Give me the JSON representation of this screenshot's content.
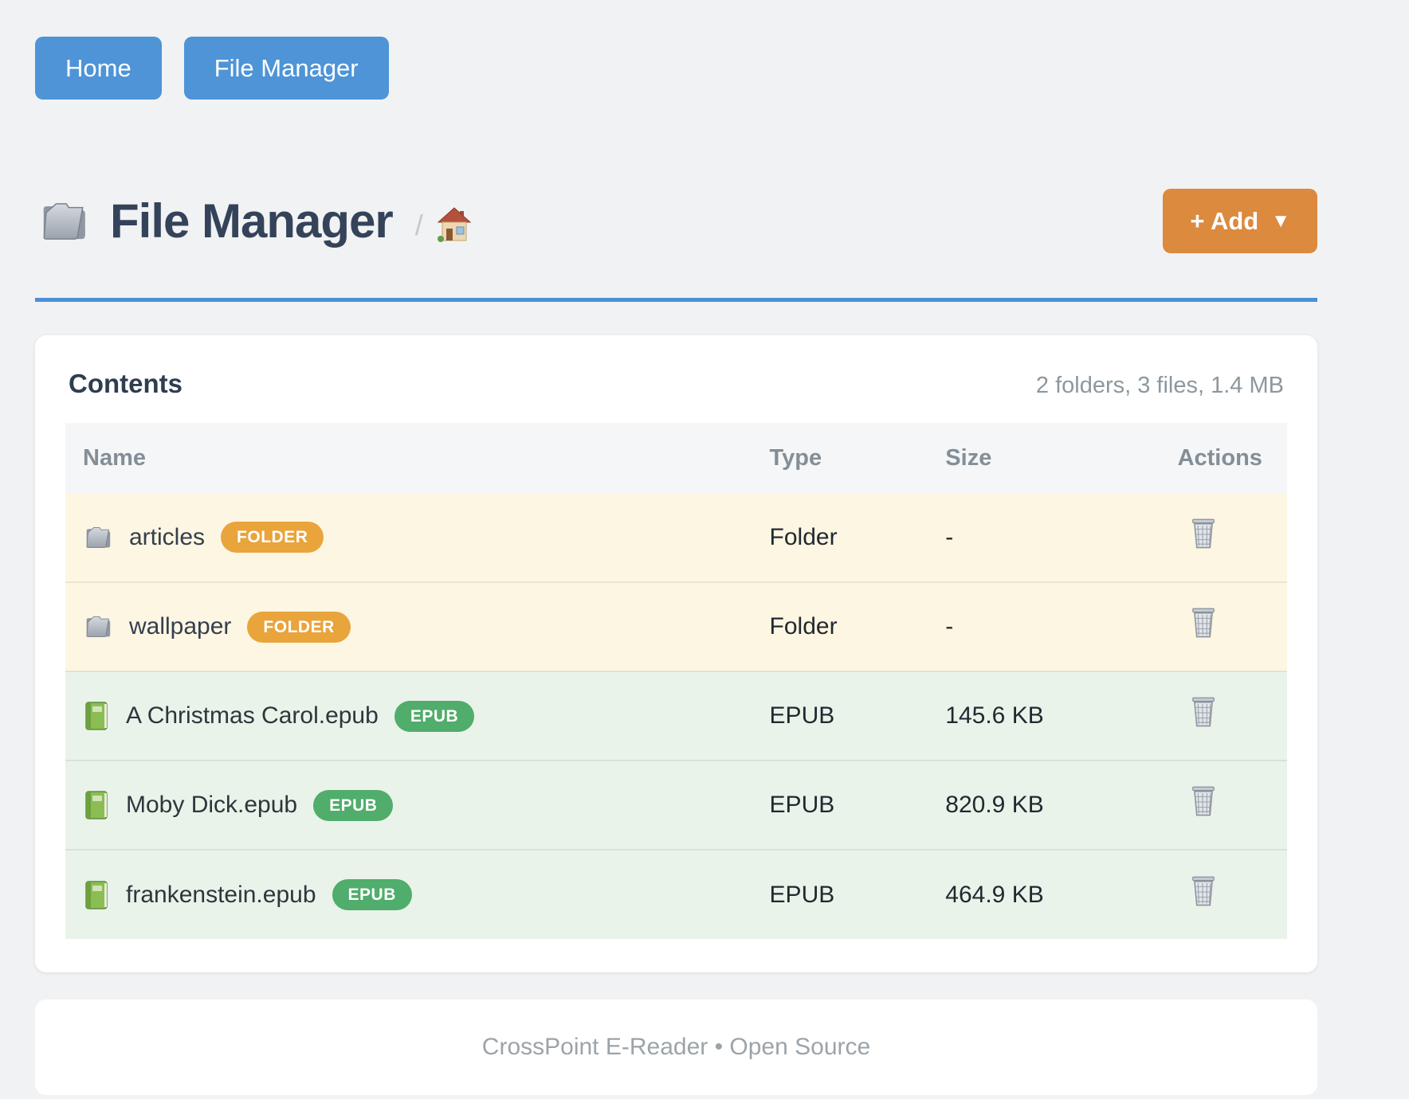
{
  "nav": {
    "home_label": "Home",
    "file_manager_label": "File Manager"
  },
  "header": {
    "title": "File Manager",
    "breadcrumb_separator": "/",
    "add_button_label": "+ Add",
    "add_button_caret": "▼"
  },
  "contents": {
    "heading": "Contents",
    "summary": "2 folders, 3 files, 1.4 MB",
    "columns": [
      "Name",
      "Type",
      "Size",
      "Actions"
    ],
    "rows": [
      {
        "name": "articles",
        "badge": "FOLDER",
        "type": "Folder",
        "size": "-",
        "kind": "folder"
      },
      {
        "name": "wallpaper",
        "badge": "FOLDER",
        "type": "Folder",
        "size": "-",
        "kind": "folder"
      },
      {
        "name": "A Christmas Carol.epub",
        "badge": "EPUB",
        "type": "EPUB",
        "size": "145.6 KB",
        "kind": "epub"
      },
      {
        "name": "Moby Dick.epub",
        "badge": "EPUB",
        "type": "EPUB",
        "size": "820.9 KB",
        "kind": "epub"
      },
      {
        "name": "frankenstein.epub",
        "badge": "EPUB",
        "type": "EPUB",
        "size": "464.9 KB",
        "kind": "epub"
      }
    ]
  },
  "footer": {
    "text": "CrossPoint E-Reader • Open Source"
  },
  "colors": {
    "nav_button": "#4e94d7",
    "add_button": "#dc8a3d",
    "rule_blue": "#4a90d9",
    "folder_badge": "#e9a43b",
    "epub_badge": "#50ad6b",
    "folder_row_bg": "#fdf6e2",
    "epub_row_bg": "#e9f3ea",
    "page_bg": "#f1f2f3"
  }
}
